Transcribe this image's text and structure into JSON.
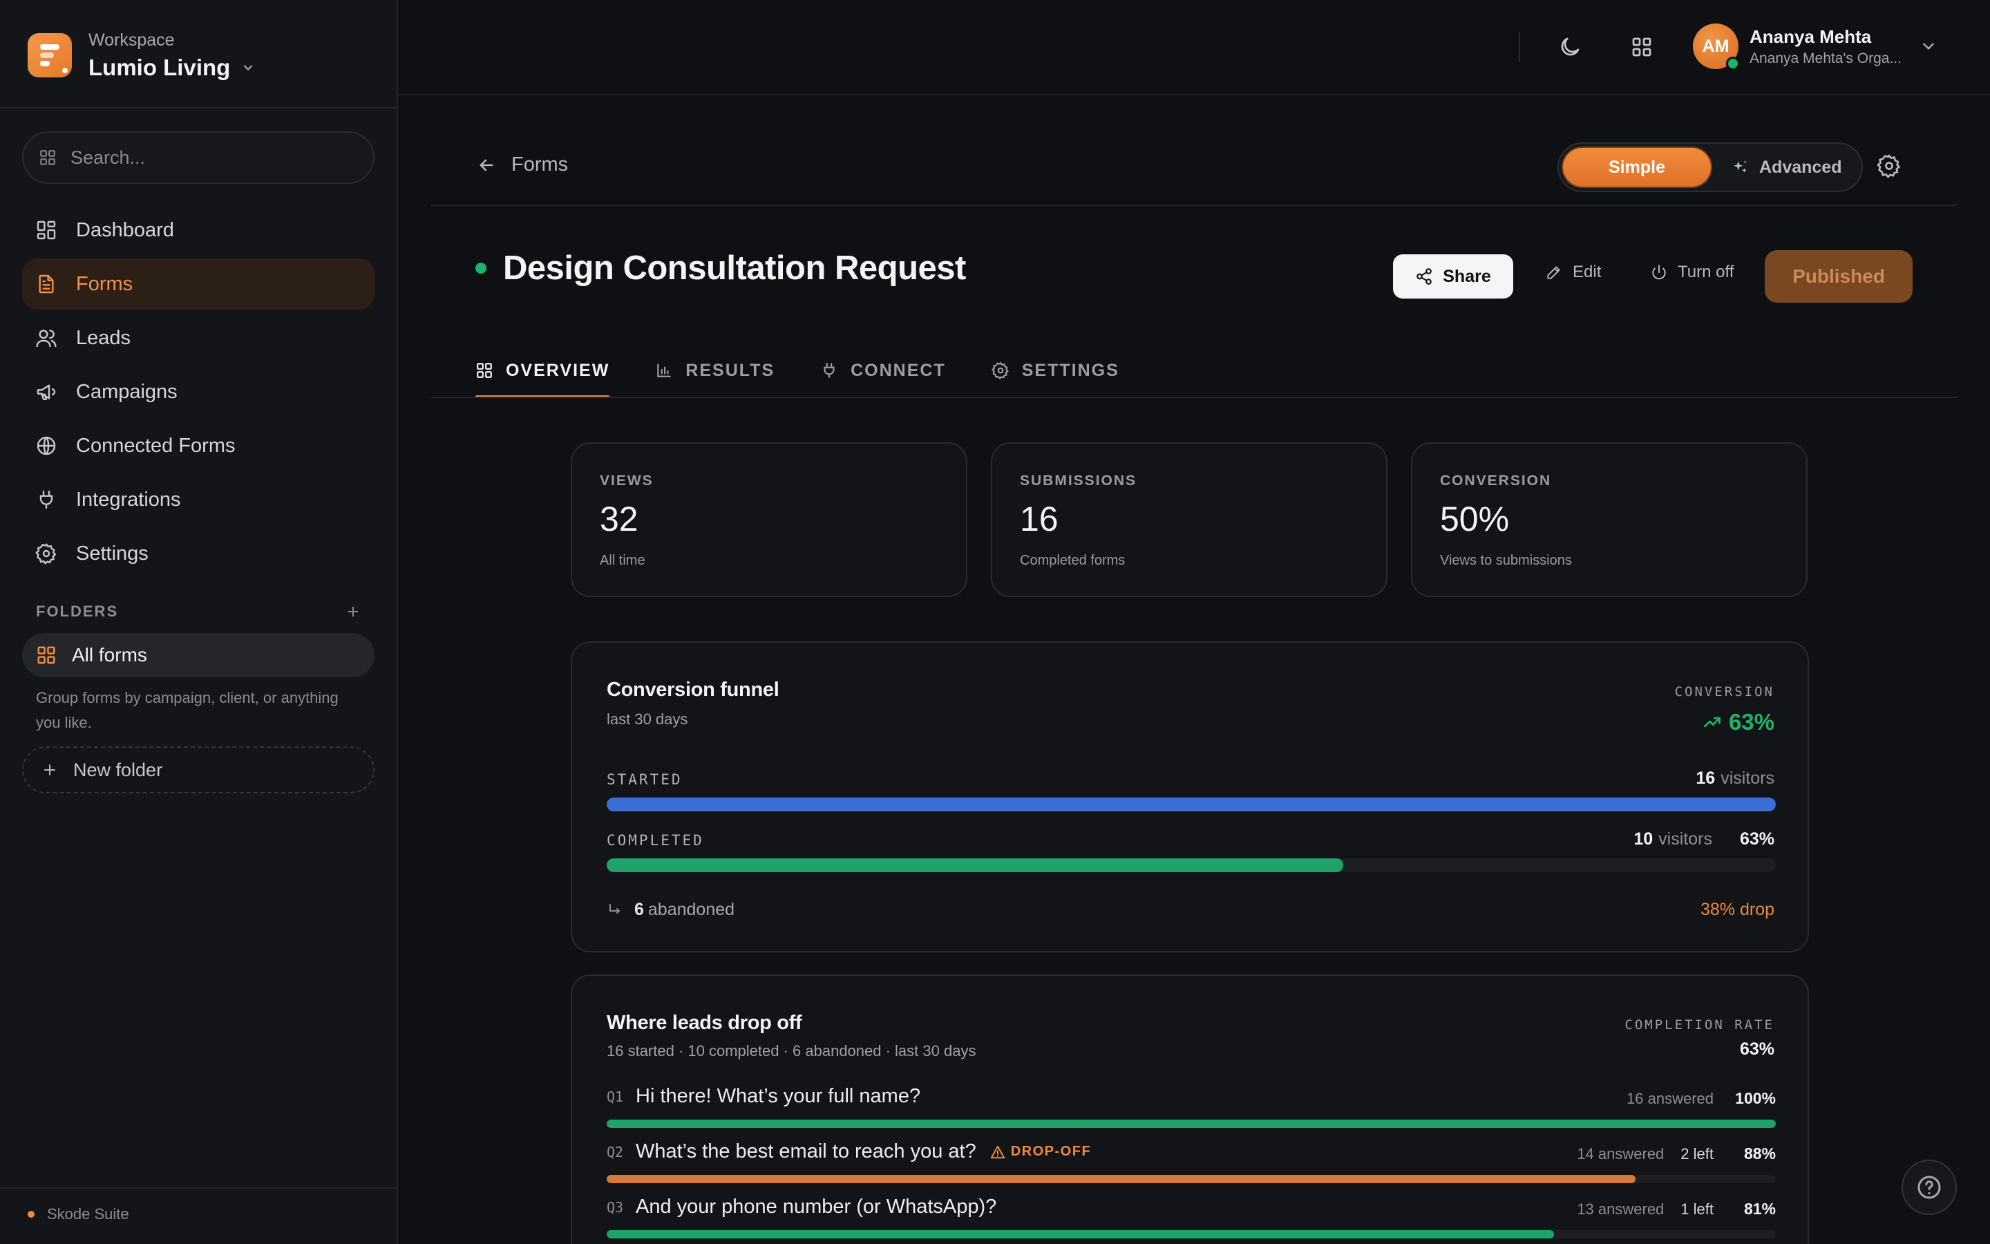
{
  "workspace": {
    "label": "Workspace",
    "name": "Lumio Living"
  },
  "search": {
    "placeholder": "Search..."
  },
  "nav": {
    "dashboard": "Dashboard",
    "forms": "Forms",
    "leads": "Leads",
    "campaigns": "Campaigns",
    "connected_forms": "Connected Forms",
    "integrations": "Integrations",
    "settings": "Settings"
  },
  "folders": {
    "heading": "FOLDERS",
    "all_forms": "All forms",
    "hint": "Group forms by campaign, client, or anything you like.",
    "new_folder": "New folder"
  },
  "footer": {
    "suite": "Skode Suite"
  },
  "user": {
    "initials": "AM",
    "name": "Ananya Mehta",
    "org": "Ananya Mehta's Orga..."
  },
  "header": {
    "back_label": "Forms",
    "mode_simple": "Simple",
    "mode_advanced": "Advanced",
    "title": "Design Consultation Request",
    "share": "Share",
    "edit": "Edit",
    "turn_off": "Turn off",
    "status": "Published"
  },
  "tabs": {
    "overview": "OVERVIEW",
    "results": "RESULTS",
    "connect": "CONNECT",
    "settings": "SETTINGS"
  },
  "stats": [
    {
      "label": "VIEWS",
      "value": "32",
      "sub": "All time"
    },
    {
      "label": "SUBMISSIONS",
      "value": "16",
      "sub": "Completed forms"
    },
    {
      "label": "CONVERSION",
      "value": "50%",
      "sub": "Views to submissions"
    }
  ],
  "funnel": {
    "title": "Conversion funnel",
    "period": "last 30 days",
    "conversion_label": "CONVERSION",
    "conversion_value": "63%",
    "started_label": "STARTED",
    "started_count": "16",
    "started_unit": "visitors",
    "started_fraction": 1.0,
    "completed_label": "COMPLETED",
    "completed_count": "10",
    "completed_unit": "visitors",
    "completed_pct": "63%",
    "completed_fraction": 0.63,
    "abandoned_count": "6",
    "abandoned_label": "abandoned",
    "drop": "38% drop",
    "colors": {
      "started": "#3b6fd8",
      "completed": "#1fa36a"
    }
  },
  "dropoff": {
    "title": "Where leads drop off",
    "summary": "16 started · 10 completed · 6 abandoned · last 30 days",
    "rate_label": "COMPLETION RATE",
    "rate_value": "63%",
    "questions": [
      {
        "num": "Q1",
        "text": "Hi there! What’s your full name?",
        "answered": "16 answered",
        "left": "",
        "pct": "100%",
        "fraction": 1.0,
        "color": "#1fa36a",
        "warn": ""
      },
      {
        "num": "Q2",
        "text": "What’s the best email to reach you at?",
        "answered": "14 answered",
        "left": "2 left",
        "pct": "88%",
        "fraction": 0.88,
        "color": "#d87a34",
        "warn": "DROP-OFF"
      },
      {
        "num": "Q3",
        "text": "And your phone number (or WhatsApp)?",
        "answered": "13 answered",
        "left": "1 left",
        "pct": "81%",
        "fraction": 0.81,
        "color": "#1fa36a",
        "warn": ""
      }
    ]
  }
}
